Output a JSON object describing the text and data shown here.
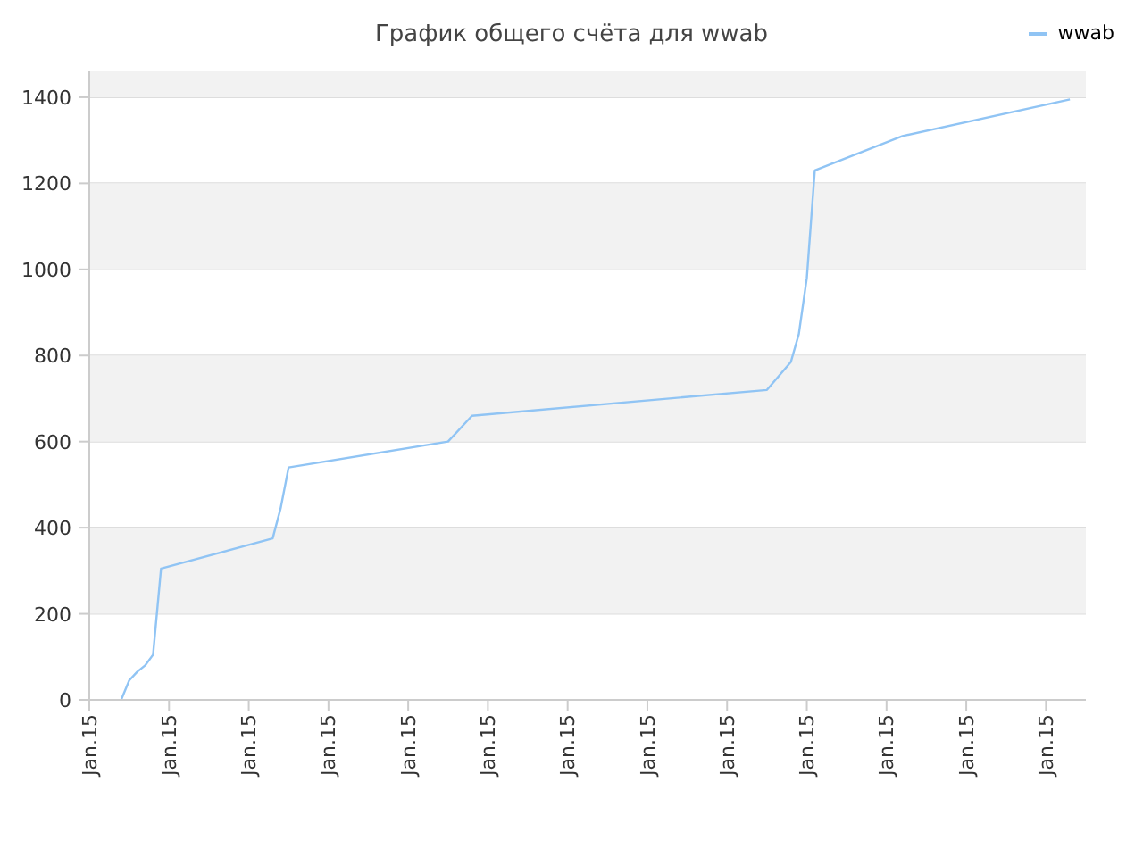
{
  "chart_data": {
    "type": "line",
    "title": "График общего счёта для wwab",
    "categories": [
      "Jan.15",
      null,
      null,
      null,
      null,
      null,
      null,
      null,
      null,
      null,
      "Jan.15",
      null,
      null,
      null,
      null,
      null,
      null,
      null,
      null,
      null,
      "Jan.15",
      null,
      null,
      null,
      null,
      null,
      null,
      null,
      null,
      null,
      "Jan.15",
      null,
      null,
      null,
      null,
      null,
      null,
      null,
      null,
      null,
      "Jan.15",
      null,
      null,
      null,
      null,
      null,
      null,
      null,
      null,
      null,
      "Jan.15",
      null,
      null,
      null,
      null,
      null,
      null,
      null,
      null,
      null,
      "Jan.15",
      null,
      null,
      null,
      null,
      null,
      null,
      null,
      null,
      null,
      "Jan.15",
      null,
      null,
      null,
      null,
      null,
      null,
      null,
      null,
      null,
      "Jan.15",
      null,
      null,
      null,
      null,
      null,
      null,
      null,
      null,
      null,
      "Jan.15",
      null,
      null,
      null,
      null,
      null,
      null,
      null,
      null,
      null,
      "Jan.15",
      null,
      null,
      null,
      null,
      null,
      null,
      null,
      null,
      null,
      "Jan.15",
      null,
      null,
      null,
      null,
      null,
      null,
      null,
      null,
      null,
      "Jan.15",
      null,
      null,
      null,
      null,
      null
    ],
    "bands": [
      {
        "axis": "y",
        "from": 200,
        "to": 400,
        "color": "#f2f2f2"
      },
      {
        "axis": "y",
        "from": 600,
        "to": 800,
        "color": "#f2f2f2"
      },
      {
        "axis": "y",
        "from": 1000,
        "to": 1200,
        "color": "#f2f2f2"
      },
      {
        "axis": "y",
        "from": 1400,
        "to": 1460,
        "color": "#f2f2f2"
      }
    ],
    "ylim": [
      0,
      1460
    ],
    "yticks": [
      0,
      200,
      400,
      600,
      800,
      1000,
      1200,
      1400
    ],
    "grid": "y",
    "legend": "top right",
    "series": [
      {
        "name": "wwab",
        "color": "#90c4f4",
        "values": [
          null,
          null,
          null,
          null,
          0,
          45,
          65,
          80,
          105,
          305,
          null,
          null,
          null,
          null,
          null,
          null,
          null,
          null,
          null,
          null,
          null,
          null,
          null,
          375,
          445,
          540,
          null,
          null,
          null,
          null,
          null,
          null,
          null,
          null,
          null,
          null,
          null,
          null,
          null,
          null,
          null,
          null,
          null,
          null,
          null,
          600,
          null,
          null,
          660,
          null,
          null,
          null,
          null,
          null,
          null,
          null,
          null,
          null,
          null,
          null,
          null,
          null,
          null,
          null,
          null,
          null,
          null,
          null,
          null,
          null,
          null,
          null,
          null,
          null,
          null,
          null,
          null,
          null,
          null,
          null,
          null,
          null,
          null,
          null,
          null,
          720,
          null,
          null,
          785,
          850,
          980,
          1230,
          null,
          null,
          null,
          null,
          null,
          null,
          null,
          null,
          null,
          null,
          1310,
          null,
          null,
          null,
          null,
          null,
          null,
          null,
          null,
          null,
          null,
          null,
          null,
          null,
          null,
          null,
          null,
          null,
          null,
          null,
          null,
          1395,
          null,
          null
        ]
      }
    ]
  }
}
